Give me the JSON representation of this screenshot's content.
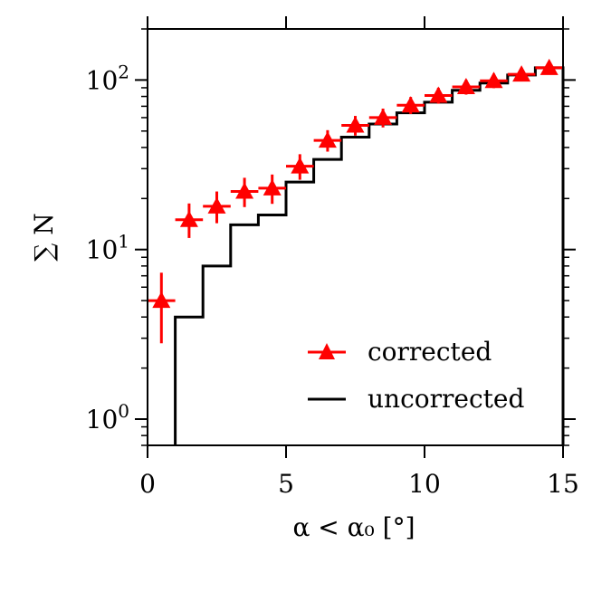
{
  "chart_data": {
    "type": "step+errorbar",
    "title": "",
    "xlabel": "α < α₀ [°]",
    "ylabel": "∑ N",
    "xlim": [
      0,
      15
    ],
    "ylim": [
      0.7,
      200
    ],
    "yscale": "log",
    "x_ticks": [
      0,
      5,
      10,
      15
    ],
    "x_tick_labels": [
      "0",
      "5",
      "10",
      "15"
    ],
    "y_ticks": [
      1,
      10,
      100
    ],
    "y_tick_labels": [
      {
        "base": "10",
        "exp": "0"
      },
      {
        "base": "10",
        "exp": "1"
      },
      {
        "base": "10",
        "exp": "2"
      }
    ],
    "series": [
      {
        "name": "corrected",
        "style": "triangle-markers-with-errorbars",
        "color": "#ff0000",
        "x": [
          0.5,
          1.5,
          2.5,
          3.5,
          4.5,
          5.5,
          6.5,
          7.5,
          8.5,
          9.5,
          10.5,
          11.5,
          12.5,
          13.5,
          14.5
        ],
        "y": [
          5,
          15,
          18,
          22,
          23,
          31,
          44,
          54,
          60,
          71,
          81,
          91,
          99,
          108,
          118
        ],
        "y_err_low": [
          2.2,
          3.3,
          3.7,
          4.2,
          4.4,
          5.2,
          6.2,
          7.0,
          7.5,
          8.0,
          8.5,
          9.0,
          9.5,
          10.0,
          10.5
        ],
        "y_err_high": [
          2.3,
          3.7,
          4.0,
          4.5,
          4.7,
          5.5,
          6.6,
          7.4,
          7.8,
          8.4,
          9.0,
          9.5,
          10.0,
          10.4,
          10.8
        ],
        "x_halfwidth": 0.5
      },
      {
        "name": "uncorrected",
        "style": "step-histogram",
        "color": "#000000",
        "bin_edges": [
          0,
          1,
          2,
          3,
          4,
          5,
          6,
          7,
          8,
          9,
          10,
          11,
          12,
          13,
          14,
          15
        ],
        "values": [
          0,
          4,
          8,
          14,
          16,
          25,
          34,
          46,
          55,
          64,
          74,
          87,
          96,
          107,
          118
        ]
      }
    ],
    "legend": {
      "position": "lower-right",
      "entries": [
        "corrected",
        "uncorrected"
      ]
    }
  }
}
